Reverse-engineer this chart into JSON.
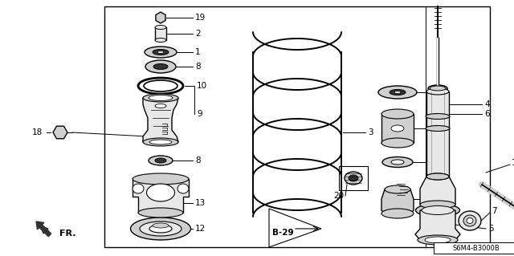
{
  "bg_color": "#ffffff",
  "line_color": "#000000",
  "part_fill": "#d0d0d0",
  "part_dark": "#333333",
  "part_light": "#e8e8e8",
  "diagram_label": "S6M4-B3000B",
  "figsize": [
    6.4,
    3.19
  ],
  "dpi": 100
}
